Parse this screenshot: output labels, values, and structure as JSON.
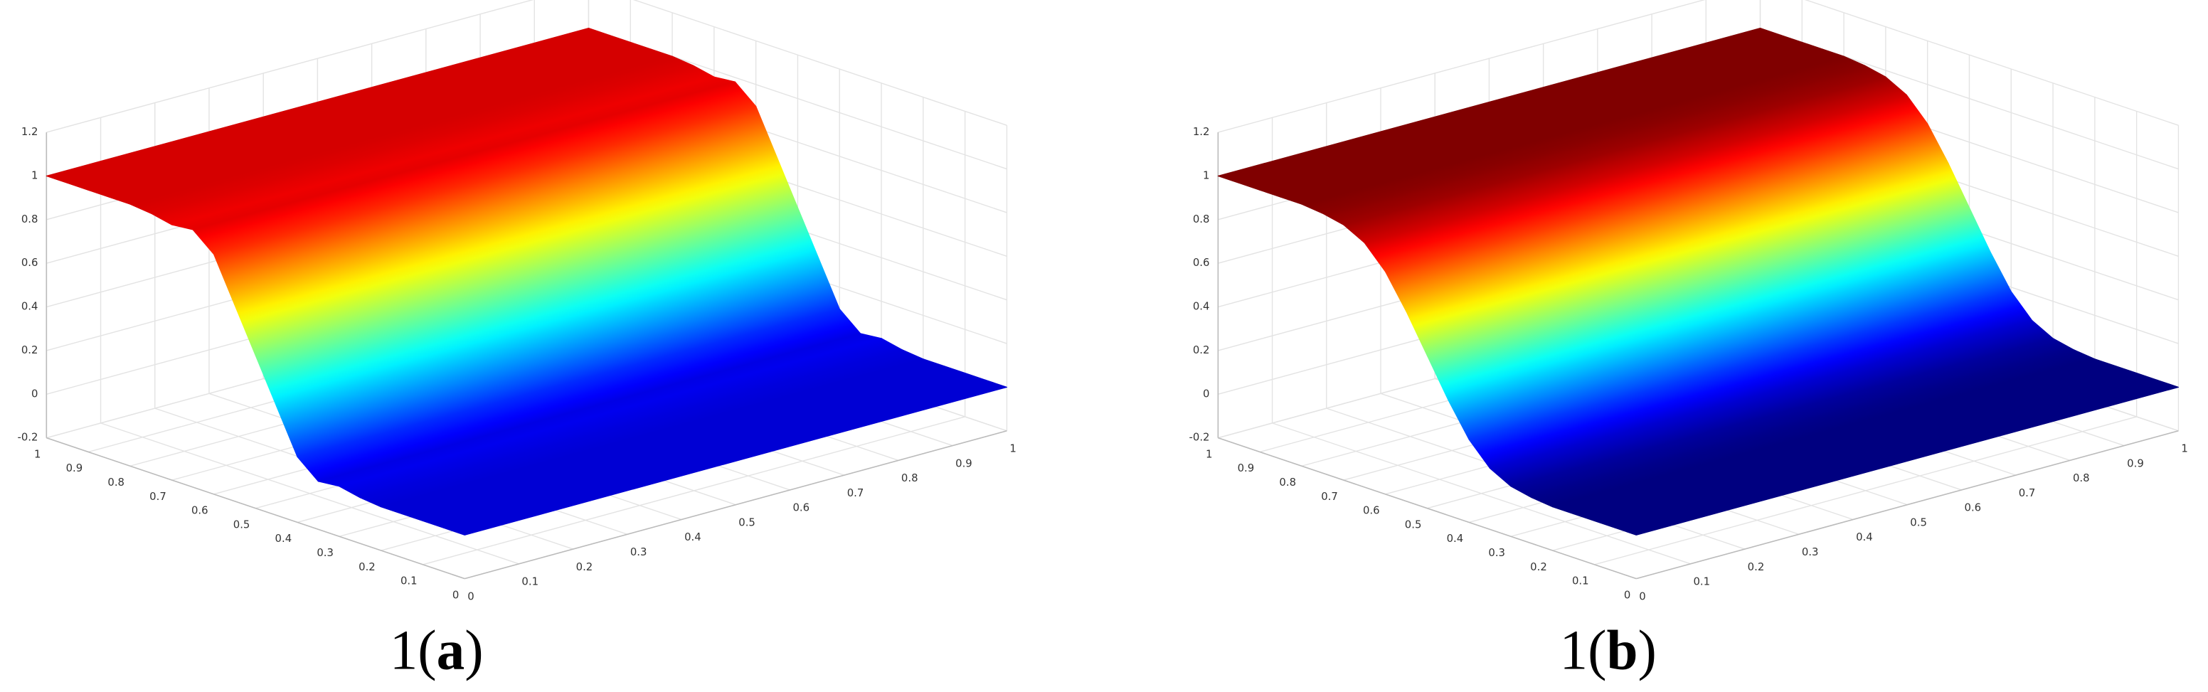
{
  "chart_data": [
    {
      "type": "surface",
      "y": [
        0,
        0.05,
        0.1,
        0.15,
        0.2,
        0.25,
        0.3,
        0.35,
        0.4,
        0.45,
        0.5,
        0.55,
        0.6,
        0.65,
        0.7,
        0.75,
        0.8,
        0.85,
        0.9,
        0.95,
        1
      ],
      "values": [
        0,
        0,
        0,
        0,
        0,
        0.01,
        0.03,
        0.02,
        0.1,
        0.3,
        0.5,
        0.7,
        0.9,
        0.98,
        0.97,
        0.99,
        1,
        1,
        1,
        1,
        1
      ],
      "xlim": [
        0,
        1
      ],
      "ylim": [
        0,
        1
      ],
      "zlim": [
        -0.2,
        1.2
      ],
      "xticks": [
        0,
        0.1,
        0.2,
        0.3,
        0.4,
        0.5,
        0.6,
        0.7,
        0.8,
        0.9,
        1
      ],
      "yticks": [
        0,
        0.1,
        0.2,
        0.3,
        0.4,
        0.5,
        0.6,
        0.7,
        0.8,
        0.9,
        1
      ],
      "zticks": [
        -0.2,
        0,
        0.2,
        0.4,
        0.6,
        0.8,
        1,
        1.2
      ],
      "colormap": "jet",
      "clim": [
        -0.1,
        1.1
      ],
      "grid": true,
      "caption": [
        "1(",
        "a",
        ")"
      ]
    },
    {
      "type": "surface",
      "y": [
        0,
        0.05,
        0.1,
        0.15,
        0.2,
        0.25,
        0.3,
        0.35,
        0.4,
        0.45,
        0.5,
        0.55,
        0.6,
        0.65,
        0.7,
        0.75,
        0.8,
        0.85,
        0.9,
        0.95,
        1
      ],
      "values": [
        0,
        0,
        0,
        0,
        0,
        0.01,
        0.03,
        0.08,
        0.18,
        0.33,
        0.5,
        0.67,
        0.82,
        0.92,
        0.97,
        0.99,
        1,
        1,
        1,
        1,
        1
      ],
      "xlim": [
        0,
        1
      ],
      "ylim": [
        0,
        1
      ],
      "zlim": [
        -0.2,
        1.2
      ],
      "xticks": [
        0,
        0.1,
        0.2,
        0.3,
        0.4,
        0.5,
        0.6,
        0.7,
        0.8,
        0.9,
        1
      ],
      "yticks": [
        0,
        0.1,
        0.2,
        0.3,
        0.4,
        0.5,
        0.6,
        0.7,
        0.8,
        0.9,
        1
      ],
      "zticks": [
        -0.2,
        0,
        0.2,
        0.4,
        0.6,
        0.8,
        1,
        1.2
      ],
      "colormap": "jet",
      "clim": [
        0,
        1
      ],
      "grid": true,
      "caption": [
        "1(",
        "b",
        ")"
      ]
    }
  ]
}
